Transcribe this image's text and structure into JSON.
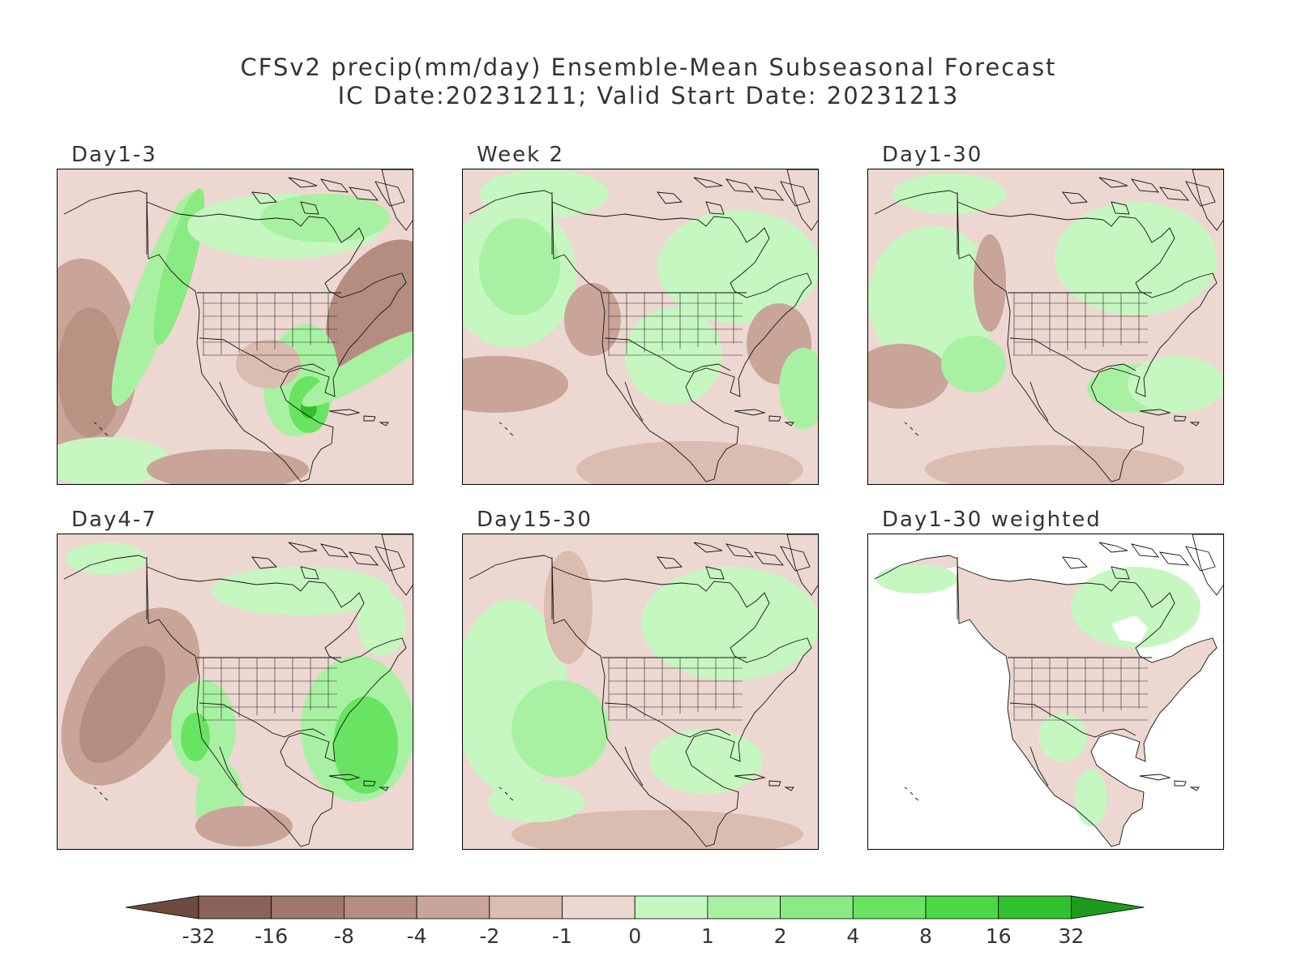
{
  "header": {
    "title_line1": "CFSv2 precip(mm/day) Ensemble-Mean Subseasonal Forecast",
    "title_line2": "IC Date:20231211; Valid Start Date: 20231213"
  },
  "panels": [
    {
      "label": "Day1-3",
      "variant": "day1_3"
    },
    {
      "label": "Week 2",
      "variant": "week2"
    },
    {
      "label": "Day1-30",
      "variant": "day1_30"
    },
    {
      "label": "Day4-7",
      "variant": "day4_7"
    },
    {
      "label": "Day15-30",
      "variant": "day15_30"
    },
    {
      "label": "Day1-30 weighted",
      "variant": "weighted"
    }
  ],
  "colorbar": {
    "labels": [
      "-32",
      "-16",
      "-8",
      "-4",
      "-2",
      "-1",
      "0",
      "1",
      "2",
      "4",
      "8",
      "16",
      "32"
    ],
    "colors": [
      "#6e4a40",
      "#8a6257",
      "#a0786c",
      "#b58d80",
      "#c9a498",
      "#dbbcb1",
      "#ecd8d0",
      "#c6f7c1",
      "#a9f1a2",
      "#8aeb82",
      "#69e462",
      "#4ad944",
      "#30c22c",
      "#1e9a1e"
    ]
  }
}
